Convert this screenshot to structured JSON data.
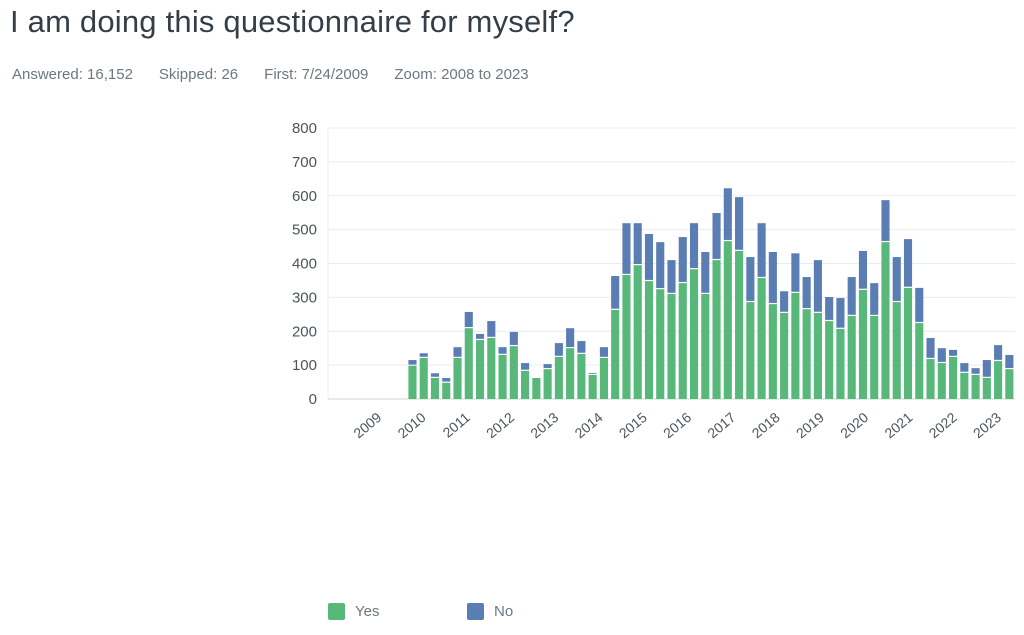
{
  "header": {
    "title": "I am doing this questionnaire for myself?",
    "answered": "Answered: 16,152",
    "skipped": "Skipped: 26",
    "first": "First: 7/24/2009",
    "zoom": "Zoom: 2008 to 2023"
  },
  "chart_data": {
    "type": "bar",
    "stacked": true,
    "title": "",
    "xlabel": "",
    "ylabel": "",
    "ylim": [
      0,
      800
    ],
    "yticks": [
      0,
      100,
      200,
      300,
      400,
      500,
      600,
      700,
      800
    ],
    "grid": true,
    "x_tick_labels": [
      "2009",
      "2010",
      "2011",
      "2012",
      "2013",
      "2014",
      "2015",
      "2016",
      "2017",
      "2018",
      "2019",
      "2020",
      "2021",
      "2022",
      "2023"
    ],
    "period": "quarterly",
    "legend_placement": "bottom",
    "colors": {
      "Yes": "#57b87a",
      "No": "#5a7db3"
    },
    "series": [
      {
        "name": "Yes",
        "values": [
          98,
          121,
          62,
          48,
          121,
          209,
          174,
          180,
          130,
          156,
          83,
          62,
          88,
          124,
          150,
          133,
          71,
          121,
          263,
          366,
          395,
          348,
          324,
          310,
          342,
          383,
          310,
          410,
          466,
          437,
          286,
          357,
          280,
          254,
          313,
          265,
          254,
          230,
          207,
          245,
          322,
          245,
          463,
          286,
          328,
          224,
          118,
          106,
          124,
          77,
          71,
          62,
          112,
          88
        ]
      },
      {
        "name": "No",
        "values": [
          17,
          14,
          14,
          14,
          32,
          48,
          18,
          50,
          23,
          42,
          23,
          0,
          15,
          41,
          59,
          38,
          6,
          32,
          100,
          153,
          124,
          139,
          139,
          100,
          136,
          136,
          124,
          139,
          156,
          159,
          133,
          162,
          154,
          64,
          117,
          95,
          156,
          71,
          91,
          115,
          115,
          97,
          124,
          133,
          144,
          104,
          62,
          44,
          21,
          29,
          20,
          53,
          47,
          42
        ]
      }
    ]
  },
  "legend": {
    "yes": "Yes",
    "no": "No"
  }
}
